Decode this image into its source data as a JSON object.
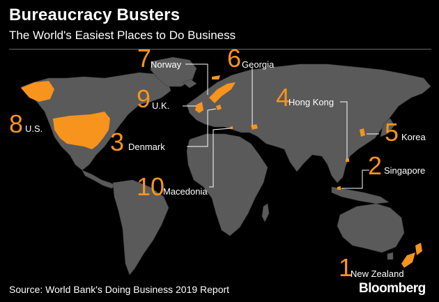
{
  "header": {
    "title": "Bureaucracy Busters",
    "subtitle": "The World's Easiest Places to Do Business"
  },
  "rankings": [
    {
      "rank": "1",
      "country": "New Zealand"
    },
    {
      "rank": "2",
      "country": "Singapore"
    },
    {
      "rank": "3",
      "country": "Denmark"
    },
    {
      "rank": "4",
      "country": "Hong Kong"
    },
    {
      "rank": "5",
      "country": "Korea"
    },
    {
      "rank": "6",
      "country": "Georgia"
    },
    {
      "rank": "7",
      "country": "Norway"
    },
    {
      "rank": "8",
      "country": "U.S."
    },
    {
      "rank": "9",
      "country": "U.K."
    },
    {
      "rank": "10",
      "country": "Macedonia"
    }
  ],
  "footer": {
    "source": "Source: World Bank's Doing Business 2019 Report",
    "brand": "Bloomberg"
  },
  "colors": {
    "background": "#000000",
    "land": "#5a5a5a",
    "highlight": "#f7941d",
    "text": "#ffffff"
  }
}
